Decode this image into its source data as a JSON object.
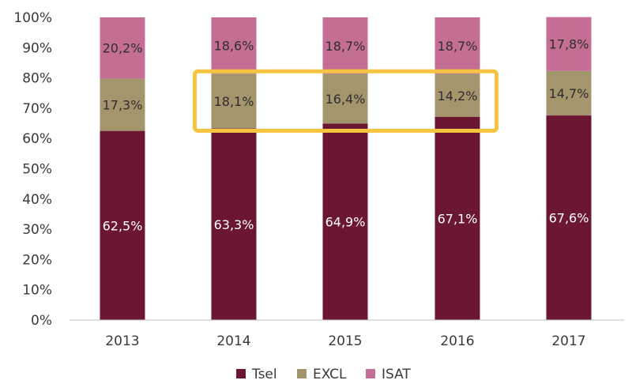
{
  "chart_data": {
    "type": "bar",
    "stacked": true,
    "categories": [
      "2013",
      "2014",
      "2015",
      "2016",
      "2017"
    ],
    "series": [
      {
        "name": "Tsel",
        "color": "#6b1732",
        "label_color": "#ffffff",
        "values": [
          62.5,
          63.3,
          64.9,
          67.1,
          67.6
        ],
        "labels": [
          "62,5%",
          "63,3%",
          "64,9%",
          "67,1%",
          "67,6%"
        ]
      },
      {
        "name": "EXCL",
        "color": "#a5956d",
        "label_color": "#2e2e2e",
        "values": [
          17.3,
          18.1,
          16.4,
          14.2,
          14.7
        ],
        "labels": [
          "17,3%",
          "18,1%",
          "16,4%",
          "14,2%",
          "14,7%"
        ]
      },
      {
        "name": "ISAT",
        "color": "#c56e95",
        "label_color": "#2e2e2e",
        "values": [
          20.2,
          18.6,
          18.7,
          18.7,
          17.8
        ],
        "labels": [
          "20,2%",
          "18,6%",
          "18,7%",
          "18,7%",
          "17,8%"
        ]
      }
    ],
    "y_ticks": [
      "0%",
      "10%",
      "20%",
      "30%",
      "40%",
      "50%",
      "60%",
      "70%",
      "80%",
      "90%",
      "100%"
    ],
    "ylim": [
      0,
      100
    ],
    "legend_position": "bottom",
    "grid": false,
    "highlight": {
      "color": "#f5c542",
      "categories": [
        "2014",
        "2015",
        "2016"
      ],
      "series": "EXCL"
    }
  }
}
